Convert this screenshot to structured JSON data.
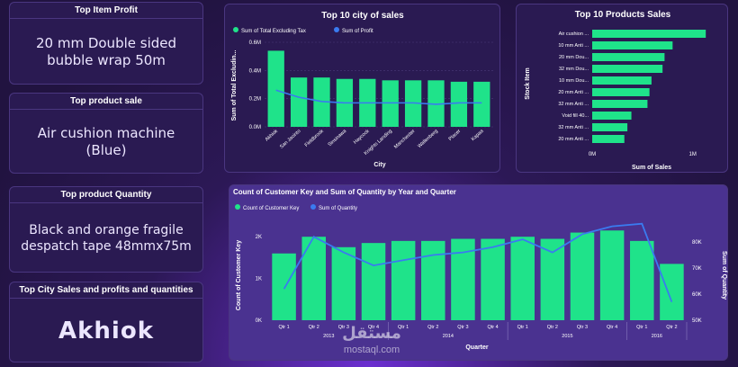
{
  "kpis": [
    {
      "title": "Top Item Profit",
      "value": "20 mm Double sided bubble wrap 50m"
    },
    {
      "title": "Top product sale",
      "value": "Air cushion machine (Blue)"
    },
    {
      "title": "Top product Quantity",
      "value": "Black and orange fragile despatch tape 48mmx75m"
    },
    {
      "title": "Top City Sales and profits and quantities",
      "value": "Akhiok"
    }
  ],
  "colors": {
    "bar": "#1fe38a",
    "line": "#3a7bf0",
    "background": "#241544",
    "card": "#2a1a52"
  },
  "watermark": {
    "arabic": "مستقل",
    "latin": "mostaql.com"
  },
  "chart_data": [
    {
      "type": "bar",
      "title": "Top 10 city of sales",
      "legend": [
        "Sum of Total Excluding Tax",
        "Sum of Profit"
      ],
      "categories": [
        "Akhiok",
        "San Jacinto",
        "Fieldbrook",
        "Sinsinawa",
        "Haycock",
        "Knights Landing",
        "Manchester",
        "Wallenberg",
        "Placer",
        "Kapaa"
      ],
      "series": [
        {
          "name": "Sum of Total Excluding Tax",
          "kind": "bar",
          "values": [
            0.54,
            0.35,
            0.35,
            0.34,
            0.34,
            0.33,
            0.33,
            0.33,
            0.32,
            0.32
          ]
        },
        {
          "name": "Sum of Profit",
          "kind": "line",
          "values": [
            0.26,
            0.21,
            0.18,
            0.17,
            0.17,
            0.17,
            0.17,
            0.16,
            0.17,
            0.17
          ]
        }
      ],
      "xlabel": "City",
      "ylabel": "Sum of Total Excludin...",
      "yticks": [
        "0.0M",
        "0.2M",
        "0.4M",
        "0.6M"
      ],
      "ylim": [
        0,
        0.6
      ]
    },
    {
      "type": "bar",
      "orientation": "horizontal",
      "title": "Top 10 Products Sales",
      "categories": [
        "Air cushion ...",
        "10 mm Anti ...",
        "20 mm Dou...",
        "32 mm Dou...",
        "10 mm Dou...",
        "20 mm Anti ...",
        "32 mm Anti ...",
        "Void fill 40...",
        "32 mm Anti ...",
        "20 mm Anti ..."
      ],
      "values": [
        1.13,
        0.8,
        0.72,
        0.7,
        0.59,
        0.57,
        0.55,
        0.39,
        0.35,
        0.32
      ],
      "xlabel": "Sum of Sales",
      "ylabel": "Stock Item",
      "xticks": [
        "0M",
        "1M"
      ],
      "xlim": [
        0,
        1.2
      ]
    },
    {
      "type": "bar",
      "title": "Count of Customer Key and Sum of Quantity by Year and Quarter",
      "legend": [
        "Count of Customer Key",
        "Sum of Quantity"
      ],
      "categories": [
        "Qtr 1",
        "Qtr 2",
        "Qtr 3",
        "Qtr 4",
        "Qtr 1",
        "Qtr 2",
        "Qtr 3",
        "Qtr 4",
        "Qtr 1",
        "Qtr 2",
        "Qtr 3",
        "Qtr 4",
        "Qtr 1",
        "Qtr 2"
      ],
      "year_groups": [
        {
          "label": "2013",
          "span": 4
        },
        {
          "label": "2014",
          "span": 4
        },
        {
          "label": "2015",
          "span": 4
        },
        {
          "label": "2016",
          "span": 2
        }
      ],
      "series": [
        {
          "name": "Count of Customer Key",
          "kind": "bar",
          "values": [
            1600,
            2000,
            1750,
            1850,
            1900,
            1900,
            1950,
            1950,
            2000,
            1950,
            2100,
            2150,
            1900,
            1350
          ]
        },
        {
          "name": "Sum of Quantity",
          "kind": "line",
          "values": [
            62000,
            82000,
            76000,
            71000,
            73000,
            75000,
            76000,
            78000,
            81000,
            76000,
            83000,
            86000,
            87000,
            57000
          ]
        }
      ],
      "xlabel": "Quarter",
      "ylabel": "Count of Customer Key",
      "y2label": "Sum of Quantity",
      "yticks": [
        "0K",
        "1K",
        "2K"
      ],
      "ylim": [
        0,
        2500
      ],
      "y2ticks": [
        "50K",
        "60K",
        "70K",
        "80K"
      ],
      "y2lim": [
        50000,
        90000
      ]
    }
  ]
}
